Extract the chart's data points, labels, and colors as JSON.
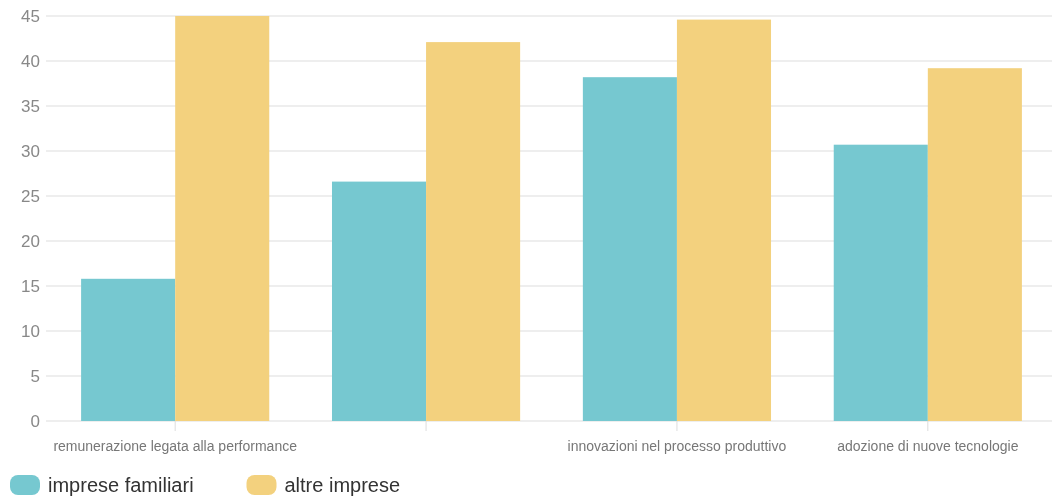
{
  "chart_data": {
    "type": "bar",
    "categories": [
      "remunerazione legata alla performance",
      null,
      "innovazioni nel processo produttivo",
      "adozione di nuove tecnologie"
    ],
    "series": [
      {
        "name": "imprese familiari",
        "color": "#76c8d0",
        "values": [
          15.8,
          26.6,
          38.2,
          30.7
        ]
      },
      {
        "name": "altre imprese",
        "color": "#f3d17e",
        "values": [
          45,
          42.1,
          44.6,
          39.2
        ]
      }
    ],
    "ylim": [
      0,
      45
    ],
    "yticks": [
      0,
      5,
      10,
      15,
      20,
      25,
      30,
      35,
      40,
      45
    ],
    "grid": "y",
    "legend": "bottom left"
  }
}
